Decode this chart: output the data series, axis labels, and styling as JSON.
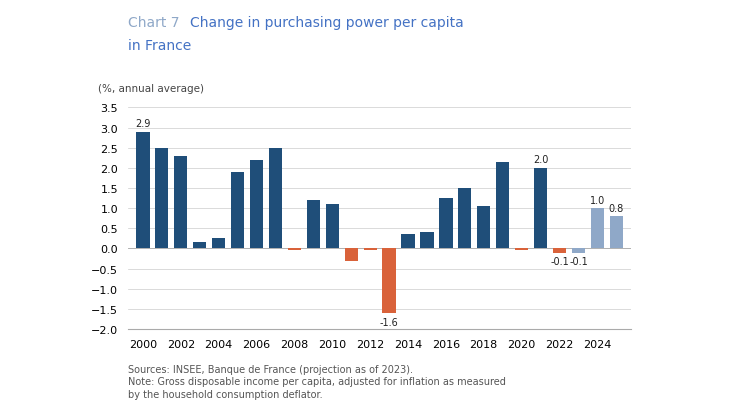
{
  "years": [
    2000,
    2001,
    2002,
    2003,
    2004,
    2005,
    2006,
    2007,
    2008,
    2009,
    2010,
    2011,
    2012,
    2013,
    2014,
    2015,
    2016,
    2017,
    2018,
    2019,
    2020,
    2021,
    2022,
    2023,
    2024,
    2025
  ],
  "values": [
    2.9,
    2.5,
    2.3,
    0.15,
    0.25,
    1.9,
    2.2,
    2.5,
    -0.05,
    1.2,
    1.1,
    -0.3,
    -0.05,
    -1.6,
    0.35,
    0.4,
    1.25,
    1.5,
    1.05,
    2.15,
    -0.05,
    2.0,
    -0.1,
    -0.1,
    1.0,
    0.8
  ],
  "bar_colors": [
    "#1f4e79",
    "#1f4e79",
    "#1f4e79",
    "#1f4e79",
    "#1f4e79",
    "#1f4e79",
    "#1f4e79",
    "#1f4e79",
    "#d9623a",
    "#1f4e79",
    "#1f4e79",
    "#d9623a",
    "#d9623a",
    "#d9623a",
    "#1f4e79",
    "#1f4e79",
    "#1f4e79",
    "#1f4e79",
    "#1f4e79",
    "#1f4e79",
    "#d9623a",
    "#1f4e79",
    "#d9623a",
    "#8fa8c8",
    "#8fa8c8",
    "#8fa8c8"
  ],
  "labels": {
    "0": "2.9",
    "13": "-1.6",
    "21": "2.0",
    "22": "-0.1",
    "23": "-0.1",
    "24": "1.0",
    "25": "0.8"
  },
  "title_prefix": "Chart 7",
  "title_line1": "Change in purchasing power per capita",
  "title_line2": "in France",
  "ylabel": "(%, annual average)",
  "ylim": [
    -2.0,
    3.75
  ],
  "yticks": [
    -2.0,
    -1.5,
    -1.0,
    -0.5,
    0.0,
    0.5,
    1.0,
    1.5,
    2.0,
    2.5,
    3.0,
    3.5
  ],
  "xtick_years": [
    2000,
    2002,
    2004,
    2006,
    2008,
    2010,
    2012,
    2014,
    2016,
    2018,
    2020,
    2022,
    2024
  ],
  "source_text1": "Sources: INSEE, Banque de France (projection as of 2023).",
  "source_text2": "Note: Gross disposable income per capita, adjusted for inflation as measured",
  "source_text3": "by the household consumption deflator.",
  "title_prefix_color": "#8fa8c8",
  "title_color": "#4472c4",
  "bar_width": 0.7,
  "background_color": "#ffffff"
}
